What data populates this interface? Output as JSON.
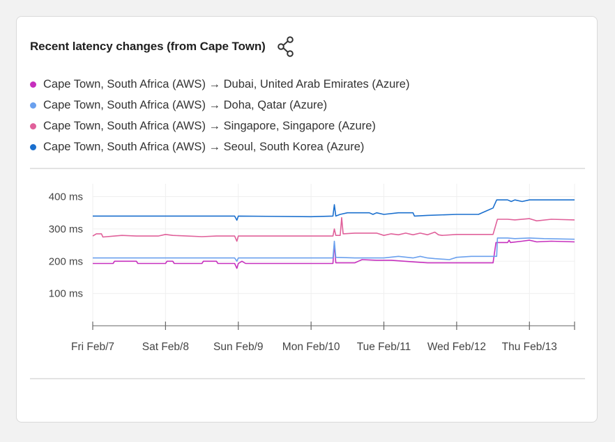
{
  "card": {
    "title": "Recent latency changes (from Cape Town)",
    "share_icon": "share-icon"
  },
  "legend": [
    {
      "label": "Cape Town, South Africa (AWS) → Dubai, United Arab Emirates (Azure)",
      "color": "#c62fbd"
    },
    {
      "label": "Cape Town, South Africa (AWS) → Doha, Qatar (Azure)",
      "color": "#6aa0ee"
    },
    {
      "label": "Cape Town, South Africa (AWS) → Singapore, Singapore (Azure)",
      "color": "#e0609a"
    },
    {
      "label": "Cape Town, South Africa (AWS) → Seoul, South Korea (Azure)",
      "color": "#1a6fce"
    }
  ],
  "chart_data": {
    "type": "line",
    "title": "Recent latency changes (from Cape Town)",
    "xlabel": "",
    "ylabel": "",
    "x_ticks": [
      "Fri Feb/7",
      "Sat Feb/8",
      "Sun Feb/9",
      "Mon Feb/10",
      "Tue Feb/11",
      "Wed Feb/12",
      "Thu Feb/13"
    ],
    "y_ticks": [
      "100 ms",
      "200 ms",
      "300 ms",
      "400 ms"
    ],
    "ylim": [
      0,
      440
    ],
    "xlim": [
      0,
      6.62
    ],
    "grid": true,
    "legend_position": "top",
    "series": [
      {
        "name": "Cape Town, South Africa (AWS) → Dubai, United Arab Emirates (Azure)",
        "color": "#c62fbd",
        "points": [
          [
            0,
            193
          ],
          [
            0.28,
            193
          ],
          [
            0.3,
            200
          ],
          [
            0.6,
            200
          ],
          [
            0.62,
            193
          ],
          [
            1.0,
            193
          ],
          [
            1.02,
            200
          ],
          [
            1.1,
            200
          ],
          [
            1.12,
            193
          ],
          [
            1.5,
            193
          ],
          [
            1.52,
            200
          ],
          [
            1.7,
            200
          ],
          [
            1.72,
            193
          ],
          [
            1.95,
            193
          ],
          [
            1.98,
            178
          ],
          [
            2.0,
            193
          ],
          [
            2.05,
            200
          ],
          [
            2.1,
            193
          ],
          [
            2.7,
            193
          ],
          [
            3.2,
            193
          ],
          [
            3.3,
            193
          ],
          [
            3.32,
            255
          ],
          [
            3.34,
            195
          ],
          [
            3.6,
            195
          ],
          [
            3.65,
            200
          ],
          [
            3.7,
            205
          ],
          [
            3.9,
            203
          ],
          [
            4.1,
            203
          ],
          [
            4.4,
            198
          ],
          [
            4.6,
            195
          ],
          [
            5.0,
            195
          ],
          [
            5.5,
            195
          ],
          [
            5.54,
            258
          ],
          [
            5.6,
            258
          ],
          [
            5.7,
            258
          ],
          [
            5.72,
            265
          ],
          [
            5.74,
            258
          ],
          [
            5.9,
            262
          ],
          [
            6.0,
            265
          ],
          [
            6.1,
            260
          ],
          [
            6.3,
            262
          ],
          [
            6.62,
            260
          ]
        ]
      },
      {
        "name": "Cape Town, South Africa (AWS) → Doha, Qatar (Azure)",
        "color": "#6aa0ee",
        "points": [
          [
            0,
            210
          ],
          [
            1.0,
            210
          ],
          [
            1.5,
            210
          ],
          [
            1.95,
            210
          ],
          [
            1.98,
            200
          ],
          [
            2.0,
            210
          ],
          [
            3.0,
            210
          ],
          [
            3.3,
            210
          ],
          [
            3.32,
            262
          ],
          [
            3.34,
            212
          ],
          [
            3.6,
            210
          ],
          [
            4.0,
            210
          ],
          [
            4.2,
            215
          ],
          [
            4.4,
            210
          ],
          [
            4.5,
            215
          ],
          [
            4.6,
            210
          ],
          [
            4.7,
            208
          ],
          [
            4.9,
            205
          ],
          [
            5.0,
            212
          ],
          [
            5.2,
            215
          ],
          [
            5.55,
            215
          ],
          [
            5.56,
            272
          ],
          [
            5.7,
            272
          ],
          [
            5.8,
            270
          ],
          [
            6.0,
            272
          ],
          [
            6.2,
            270
          ],
          [
            6.62,
            268
          ]
        ]
      },
      {
        "name": "Cape Town, South Africa (AWS) → Singapore, Singapore (Azure)",
        "color": "#e0609a",
        "points": [
          [
            0,
            278
          ],
          [
            0.05,
            285
          ],
          [
            0.12,
            285
          ],
          [
            0.14,
            275
          ],
          [
            0.3,
            278
          ],
          [
            0.4,
            280
          ],
          [
            0.6,
            278
          ],
          [
            0.9,
            278
          ],
          [
            1.0,
            283
          ],
          [
            1.1,
            280
          ],
          [
            1.3,
            278
          ],
          [
            1.5,
            276
          ],
          [
            1.7,
            278
          ],
          [
            1.95,
            278
          ],
          [
            1.98,
            262
          ],
          [
            2.0,
            278
          ],
          [
            2.5,
            278
          ],
          [
            3.0,
            278
          ],
          [
            3.3,
            278
          ],
          [
            3.32,
            300
          ],
          [
            3.34,
            280
          ],
          [
            3.4,
            280
          ],
          [
            3.42,
            335
          ],
          [
            3.44,
            285
          ],
          [
            3.6,
            287
          ],
          [
            3.9,
            287
          ],
          [
            4.0,
            280
          ],
          [
            4.1,
            285
          ],
          [
            4.2,
            282
          ],
          [
            4.3,
            287
          ],
          [
            4.4,
            282
          ],
          [
            4.5,
            287
          ],
          [
            4.6,
            282
          ],
          [
            4.7,
            290
          ],
          [
            4.75,
            282
          ],
          [
            4.8,
            280
          ],
          [
            5.0,
            283
          ],
          [
            5.5,
            283
          ],
          [
            5.56,
            330
          ],
          [
            5.7,
            330
          ],
          [
            5.8,
            328
          ],
          [
            6.0,
            332
          ],
          [
            6.1,
            325
          ],
          [
            6.3,
            330
          ],
          [
            6.62,
            328
          ]
        ]
      },
      {
        "name": "Cape Town, South Africa (AWS) → Seoul, South Korea (Azure)",
        "color": "#1a6fce",
        "points": [
          [
            0,
            340
          ],
          [
            1.0,
            340
          ],
          [
            1.95,
            340
          ],
          [
            1.98,
            327
          ],
          [
            2.0,
            340
          ],
          [
            3.0,
            338
          ],
          [
            3.3,
            340
          ],
          [
            3.32,
            375
          ],
          [
            3.34,
            340
          ],
          [
            3.4,
            345
          ],
          [
            3.5,
            350
          ],
          [
            3.8,
            350
          ],
          [
            3.85,
            345
          ],
          [
            3.9,
            350
          ],
          [
            4.0,
            345
          ],
          [
            4.2,
            350
          ],
          [
            4.4,
            350
          ],
          [
            4.42,
            340
          ],
          [
            4.6,
            342
          ],
          [
            5.0,
            345
          ],
          [
            5.3,
            345
          ],
          [
            5.4,
            355
          ],
          [
            5.5,
            365
          ],
          [
            5.55,
            390
          ],
          [
            5.7,
            390
          ],
          [
            5.75,
            385
          ],
          [
            5.8,
            390
          ],
          [
            5.9,
            385
          ],
          [
            6.0,
            390
          ],
          [
            6.62,
            390
          ]
        ]
      }
    ]
  }
}
